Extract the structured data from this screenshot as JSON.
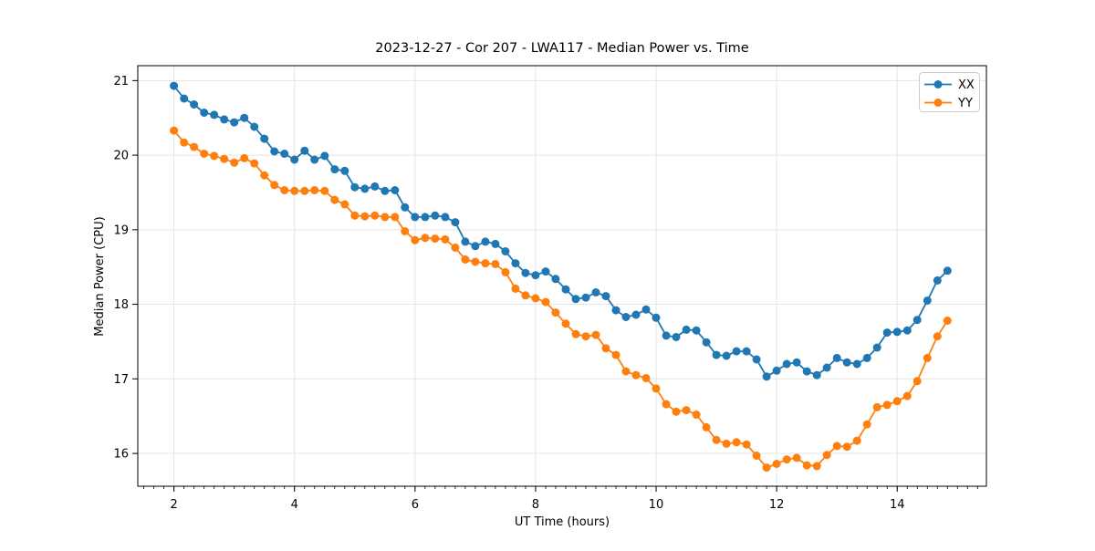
{
  "figure": {
    "background": "#ffffff",
    "spine_color": "#000000",
    "grid_color": "#e5e5e5"
  },
  "chart_data": {
    "type": "line",
    "title": "2023-12-27 - Cor 207 - LWA117 - Median Power vs. Time",
    "xlabel": "UT Time (hours)",
    "ylabel": "Median Power (CPU)",
    "xlim": [
      1.4,
      15.48
    ],
    "ylim": [
      15.56,
      21.2
    ],
    "x_ticks": [
      2,
      4,
      6,
      8,
      10,
      12,
      14
    ],
    "y_ticks": [
      16,
      17,
      18,
      19,
      20,
      21
    ],
    "x_minor_tick_step": 0.16667,
    "grid": true,
    "legend_position": "upper-right",
    "marker": "circle",
    "x": [
      2.0,
      2.167,
      2.333,
      2.5,
      2.667,
      2.833,
      3.0,
      3.167,
      3.333,
      3.5,
      3.667,
      3.833,
      4.0,
      4.167,
      4.333,
      4.5,
      4.667,
      4.833,
      5.0,
      5.167,
      5.333,
      5.5,
      5.667,
      5.833,
      6.0,
      6.167,
      6.333,
      6.5,
      6.667,
      6.833,
      7.0,
      7.167,
      7.333,
      7.5,
      7.667,
      7.833,
      8.0,
      8.167,
      8.333,
      8.5,
      8.667,
      8.833,
      9.0,
      9.167,
      9.333,
      9.5,
      9.667,
      9.833,
      10.0,
      10.167,
      10.333,
      10.5,
      10.667,
      10.833,
      11.0,
      11.167,
      11.333,
      11.5,
      11.667,
      11.833,
      12.0,
      12.167,
      12.333,
      12.5,
      12.667,
      12.833,
      13.0,
      13.167,
      13.333,
      13.5,
      13.667,
      13.833,
      14.0,
      14.167,
      14.333,
      14.5,
      14.667,
      14.833
    ],
    "series": [
      {
        "name": "XX",
        "color": "#1f77b4",
        "values": [
          20.93,
          20.76,
          20.68,
          20.57,
          20.54,
          20.48,
          20.44,
          20.5,
          20.38,
          20.22,
          20.05,
          20.02,
          19.94,
          20.06,
          19.94,
          19.99,
          19.81,
          19.79,
          19.57,
          19.55,
          19.58,
          19.52,
          19.53,
          19.3,
          19.17,
          19.17,
          19.19,
          19.17,
          19.1,
          18.84,
          18.78,
          18.84,
          18.81,
          18.71,
          18.55,
          18.42,
          18.39,
          18.44,
          18.34,
          18.2,
          18.07,
          18.09,
          18.16,
          18.11,
          17.92,
          17.83,
          17.86,
          17.93,
          17.82,
          17.58,
          17.56,
          17.66,
          17.65,
          17.49,
          17.32,
          17.31,
          17.37,
          17.37,
          17.26,
          17.03,
          17.11,
          17.2,
          17.22,
          17.1,
          17.05,
          17.15,
          17.28,
          17.22,
          17.2,
          17.28,
          17.42,
          17.62,
          17.63,
          17.65,
          17.79,
          18.05,
          18.32,
          18.45
        ]
      },
      {
        "name": "YY",
        "color": "#ff7f0e",
        "values": [
          20.33,
          20.17,
          20.11,
          20.02,
          19.99,
          19.95,
          19.9,
          19.96,
          19.89,
          19.73,
          19.6,
          19.53,
          19.52,
          19.52,
          19.53,
          19.52,
          19.4,
          19.34,
          19.19,
          19.18,
          19.19,
          19.17,
          19.17,
          18.98,
          18.86,
          18.89,
          18.88,
          18.87,
          18.76,
          18.6,
          18.57,
          18.55,
          18.54,
          18.43,
          18.21,
          18.12,
          18.08,
          18.03,
          17.89,
          17.74,
          17.6,
          17.57,
          17.59,
          17.41,
          17.32,
          17.1,
          17.05,
          17.01,
          16.87,
          16.66,
          16.56,
          16.58,
          16.52,
          16.35,
          16.18,
          16.13,
          16.15,
          16.12,
          15.97,
          15.81,
          15.86,
          15.92,
          15.94,
          15.84,
          15.83,
          15.98,
          16.1,
          16.09,
          16.17,
          16.39,
          16.62,
          16.65,
          16.7,
          16.77,
          16.97,
          17.28,
          17.57,
          17.78
        ]
      }
    ]
  }
}
